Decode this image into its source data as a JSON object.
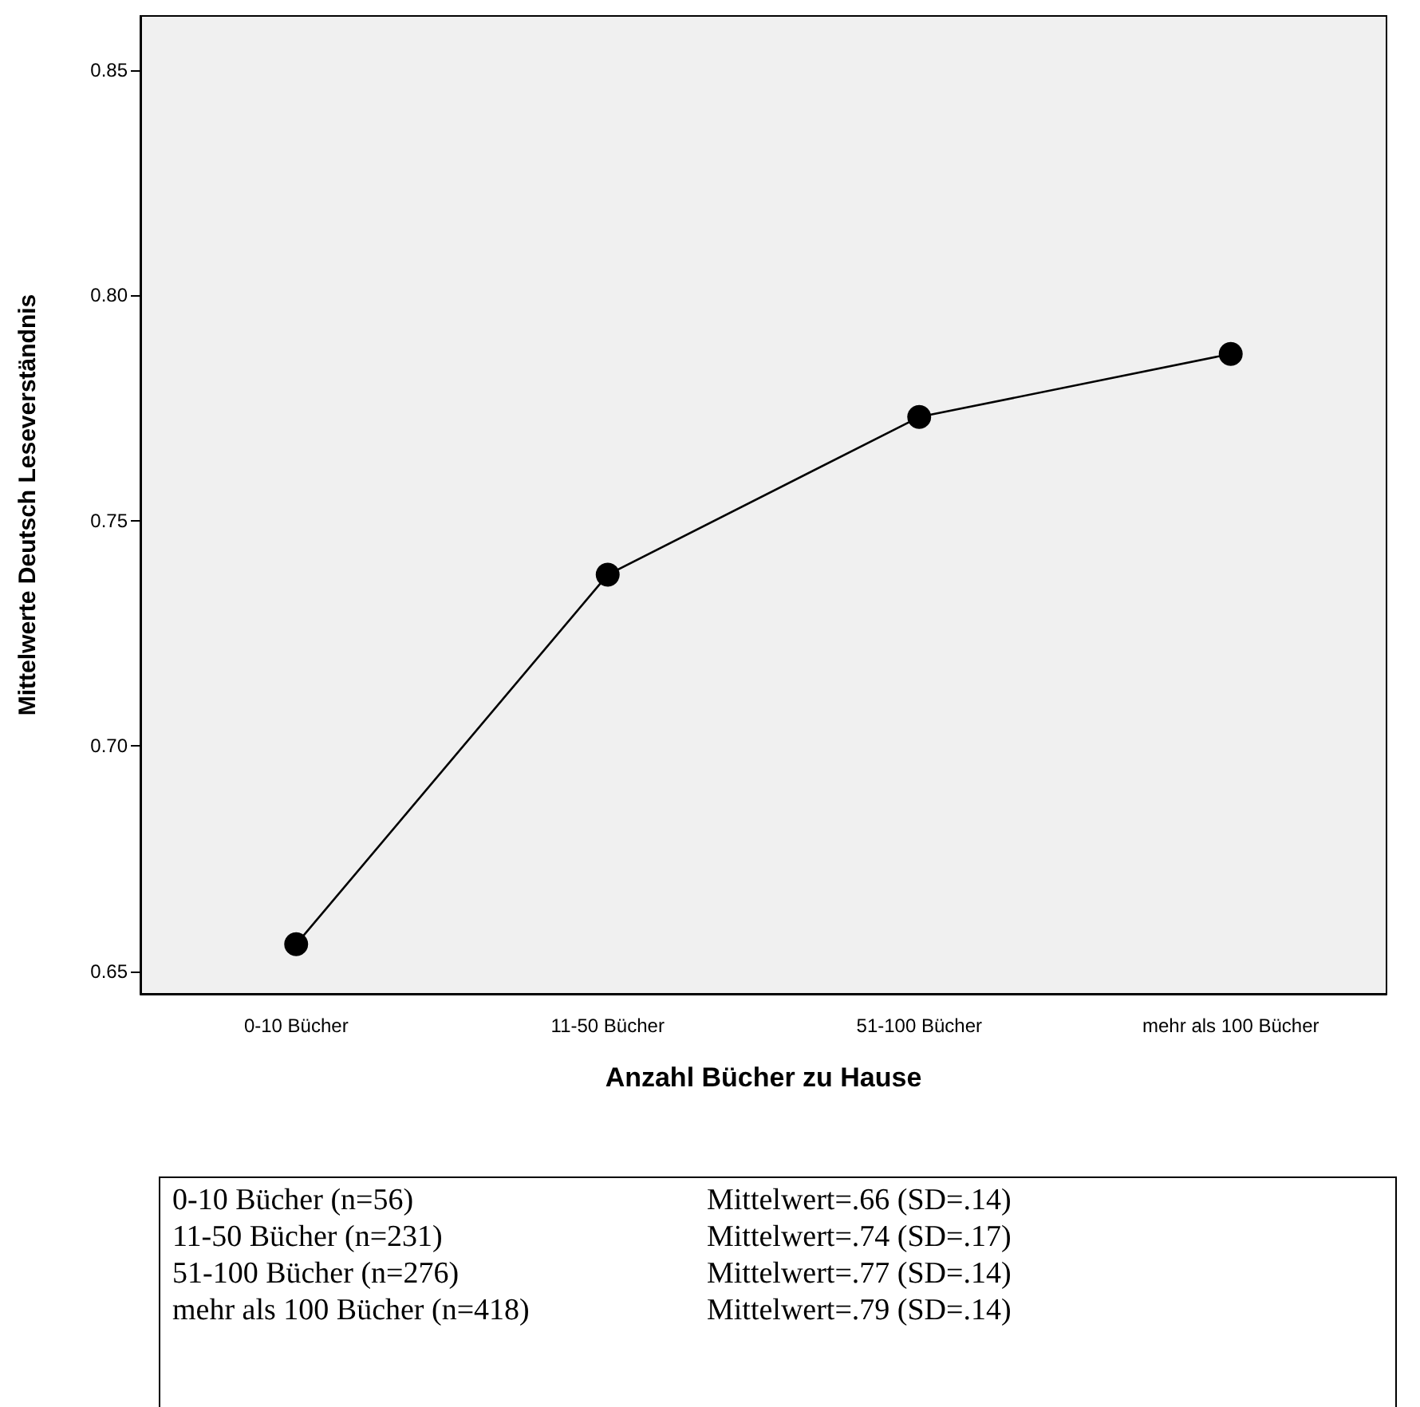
{
  "chart_data": {
    "type": "line",
    "xlabel": "Anzahl Bücher zu Hause",
    "ylabel": "Mittelwerte Deutsch Leseverständnis",
    "categories": [
      "0-10 Bücher",
      "11-50 Bücher",
      "51-100 Bücher",
      "mehr als 100 Bücher"
    ],
    "series": [
      {
        "color": "#000000",
        "values": [
          0.656,
          0.738,
          0.773,
          0.787
        ]
      }
    ],
    "ylim": [
      0.645,
      0.862
    ],
    "yticks": [
      0.65,
      {
        "value": 0.7,
        "label": "0.70"
      },
      0.75,
      {
        "value": 0.8,
        "label": "0.80"
      },
      0.85
    ],
    "grid": false,
    "marker": "circle",
    "line_style": "solid",
    "annotations": [
      "0-10 Bücher (n=56)",
      "Mittelwert=.66 (SD=.14)",
      "11-50 Bücher (n=231)",
      "Mittelwert=.74 (SD=.17)",
      "51-100 Bücher (n=276)",
      "Mittelwert=.77 (SD=.14)",
      "mehr als 100 Bücher (n=418)",
      "Mittelwert=.79 (SD=.14)"
    ]
  }
}
